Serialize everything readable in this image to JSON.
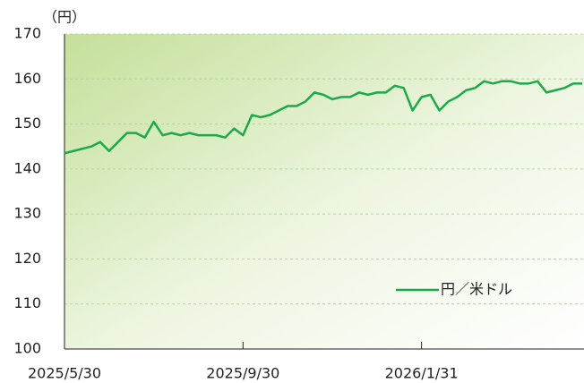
{
  "chart_data": {
    "type": "line",
    "y_label": "（円）",
    "categories": [
      "2025/5/30",
      null,
      null,
      null,
      null,
      null,
      null,
      null,
      null,
      null,
      null,
      null,
      null,
      null,
      null,
      null,
      null,
      null,
      null,
      null,
      "2025/9/30",
      null,
      null,
      null,
      null,
      null,
      null,
      null,
      null,
      null,
      null,
      null,
      null,
      null,
      null,
      null,
      null,
      null,
      null,
      null,
      "2026/1/31",
      null,
      null,
      null,
      null,
      null,
      null,
      null,
      null,
      null,
      null,
      null,
      null,
      null,
      null,
      null,
      null,
      null,
      null
    ],
    "series": [
      {
        "name": "円／米ドル",
        "color": "#1aaa4a",
        "values": [
          143.5,
          144,
          144.5,
          145,
          146,
          144,
          146,
          148,
          148,
          147,
          150.5,
          147.5,
          148,
          147.5,
          148,
          147.5,
          147.5,
          147.5,
          147,
          149,
          147.5,
          152,
          151.5,
          152,
          153,
          154,
          154,
          155,
          157,
          156.5,
          155.5,
          156,
          156,
          157,
          156.5,
          157,
          157,
          158.5,
          158,
          153,
          156,
          156.5,
          153,
          155,
          156,
          157.5,
          158,
          159.5,
          159,
          159.5,
          159.5,
          159,
          159,
          159.5,
          157,
          157.5,
          158,
          159,
          159
        ]
      }
    ],
    "ylim": [
      100,
      170
    ],
    "yticks": [
      100,
      110,
      120,
      130,
      140,
      150,
      160,
      170
    ],
    "grid": true,
    "legend": "lower right"
  }
}
